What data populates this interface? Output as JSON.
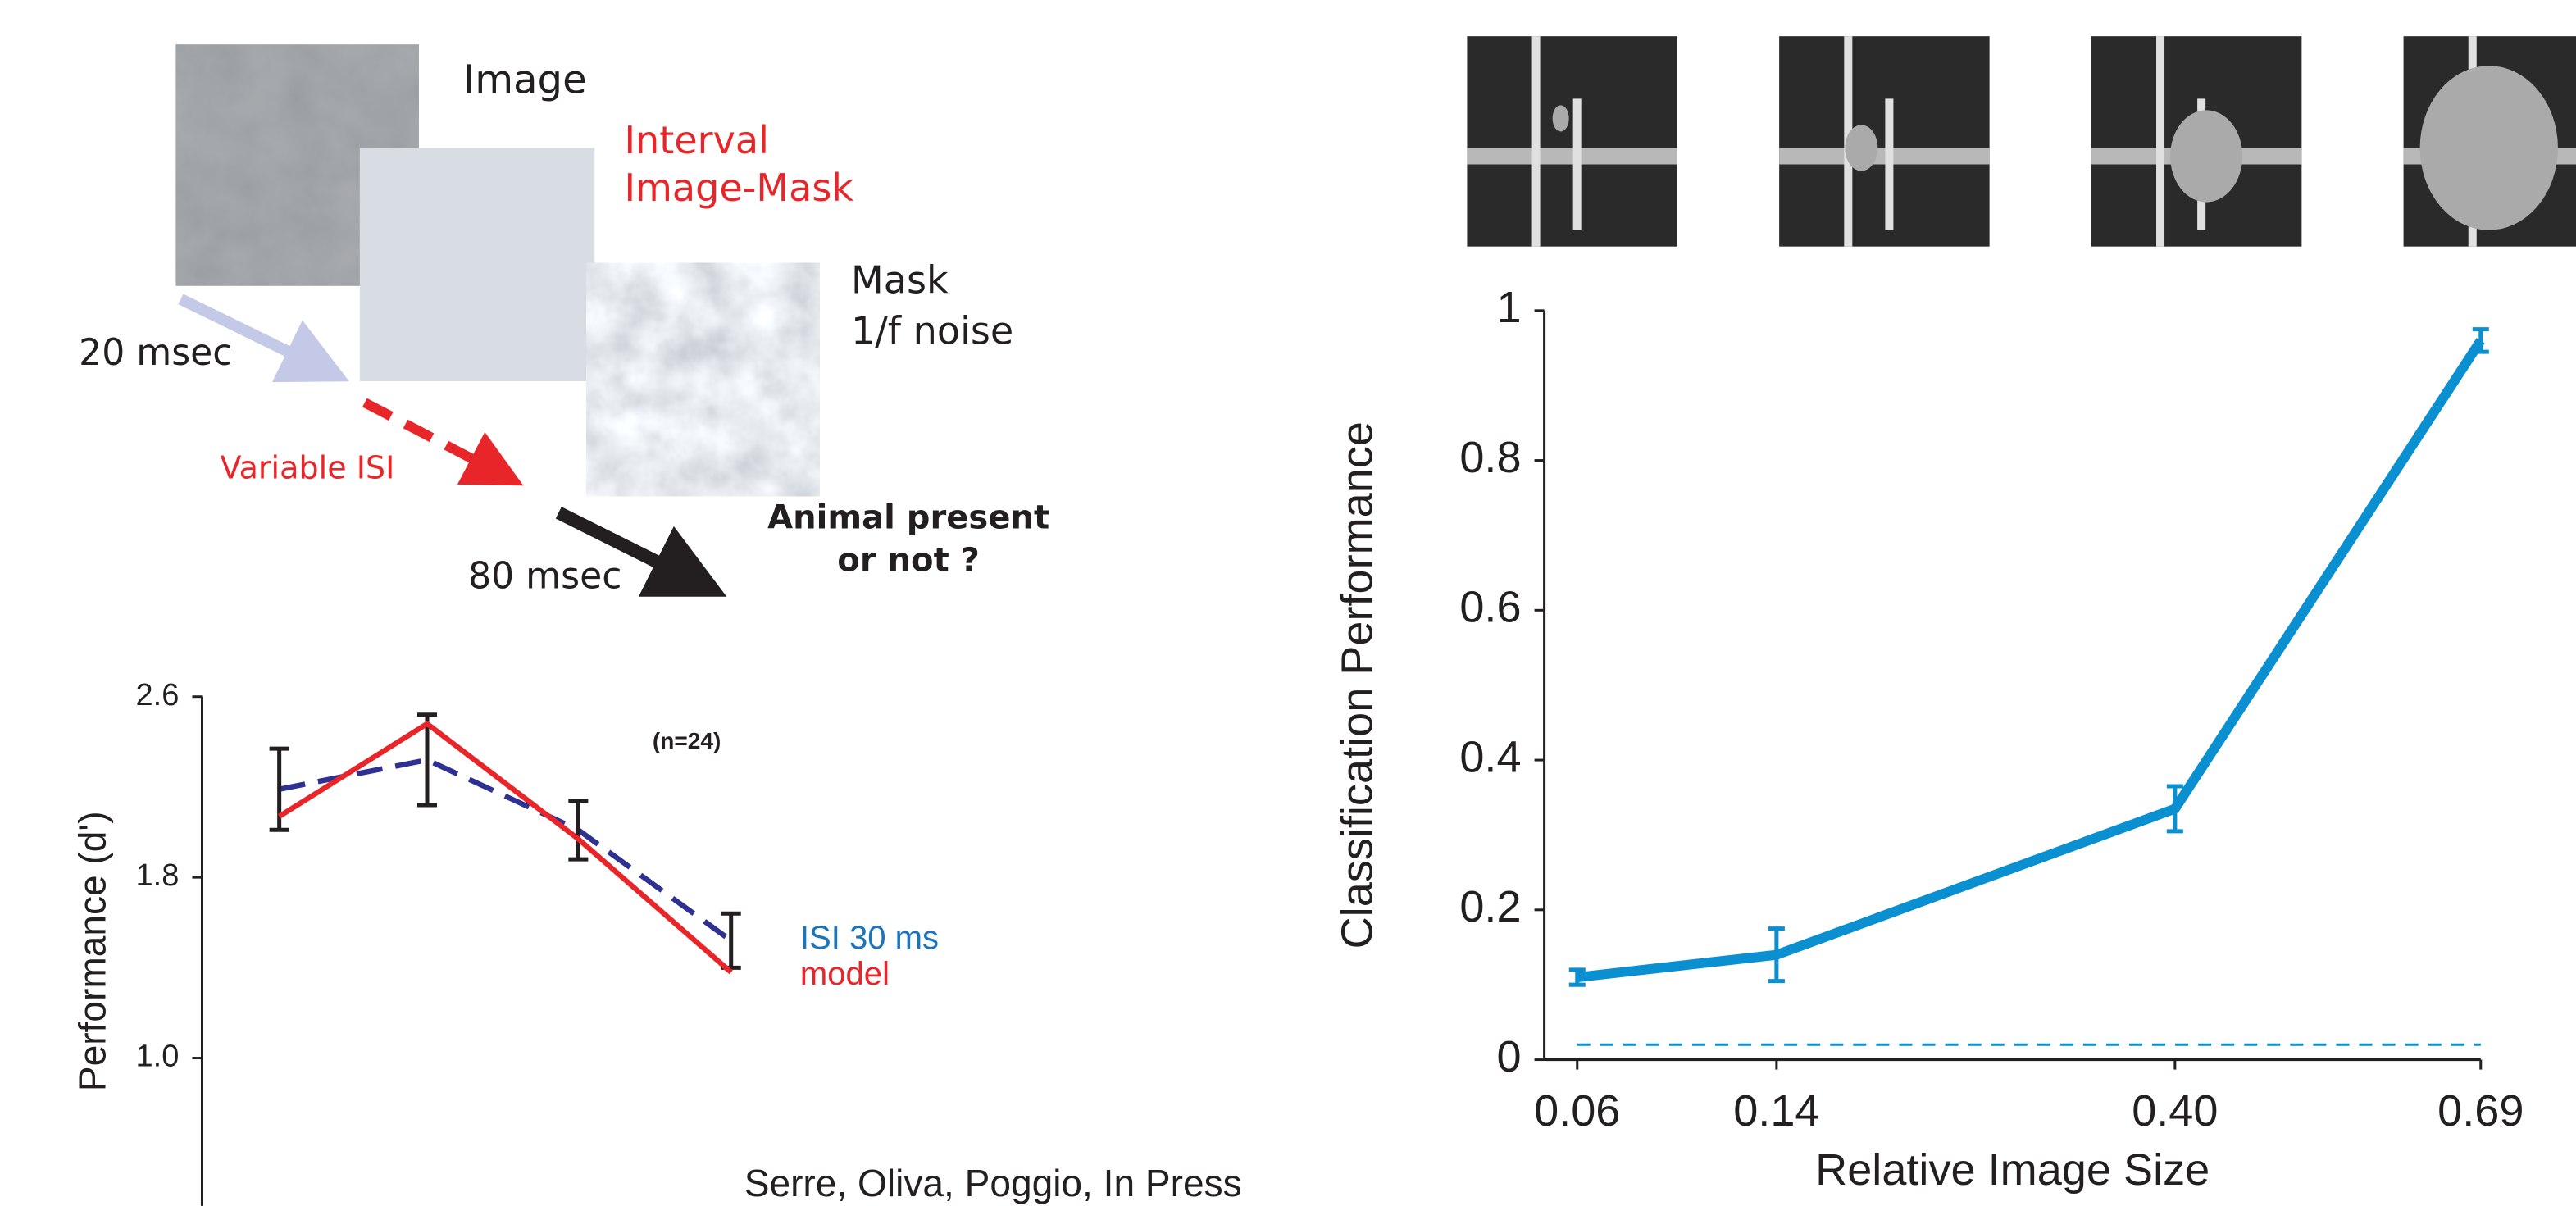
{
  "diagram": {
    "image": "Image",
    "interval": "Interval",
    "image_mask": "Image-Mask",
    "mask": "Mask",
    "noise": "1/f noise",
    "image_duration": "20 msec",
    "isi": "Variable ISI",
    "mask_duration": "80 msec",
    "question": [
      "Animal present",
      "or not ?"
    ]
  },
  "citation": "Serre, Oliva, Poggio, In Press",
  "chart_data": [
    {
      "type": "line",
      "ylabel": "Performance (d')",
      "annotation": "(n=24)",
      "categories": [
        null,
        null,
        null,
        null
      ],
      "ylim": [
        0.4,
        2.6
      ],
      "yticks": [
        {
          "value": 1.0,
          "label": "1.0"
        },
        1.8,
        2.6
      ],
      "series": [
        {
          "name": "ISI 30 ms",
          "color": "#2e3192",
          "legend_color": "#1b75bc",
          "dashed": true,
          "error_color": "#231f20",
          "values": [
            2.19,
            2.32,
            2.01,
            1.52
          ],
          "errors": [
            0.18,
            0.2,
            0.13,
            0.12
          ]
        },
        {
          "name": "model",
          "color": "#e8262a",
          "legend_color": "#e8262a",
          "values": [
            2.07,
            2.48,
            1.97,
            1.38
          ]
        }
      ]
    },
    {
      "type": "line",
      "xlabel": "Relative Image Size",
      "ylabel": "Classification Performance",
      "x": [
        0.06,
        0.14,
        0.4,
        0.69
      ],
      "xscale": "sqrt",
      "xlim": [
        0.05,
        0.69
      ],
      "xticks": [
        0.06,
        0.14,
        {
          "value": 0.4,
          "label": "0.40"
        },
        0.69
      ],
      "ylim": [
        0,
        1
      ],
      "yticks": [
        0,
        0.2,
        0.4,
        0.6,
        0.8,
        1
      ],
      "chance_line": 0.02,
      "series": [
        {
          "color": "#0a8fd0",
          "values": [
            0.11,
            0.14,
            0.335,
            0.96
          ],
          "errors": [
            0.01,
            0.035,
            0.03,
            0.015
          ]
        }
      ]
    }
  ]
}
